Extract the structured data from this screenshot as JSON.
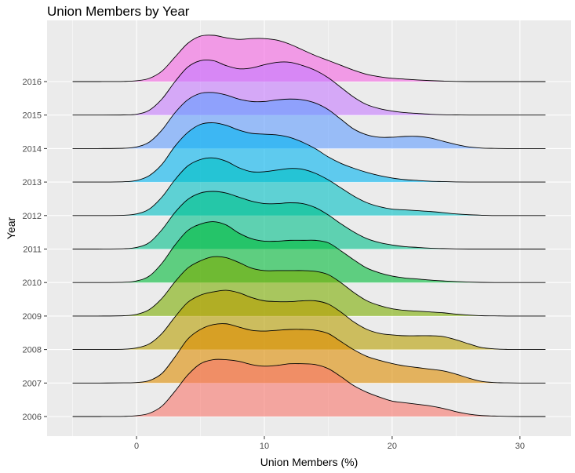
{
  "chart_data": {
    "type": "ridgeline",
    "title": "Union Members by Year",
    "xlabel": "Union Members (%)",
    "ylabel": "Year",
    "xlim": [
      -7,
      34
    ],
    "x_ticks": [
      0,
      10,
      20,
      30
    ],
    "grid": true,
    "x": [
      -5,
      -3,
      -1,
      0,
      1,
      2,
      3,
      4,
      5,
      6,
      7,
      8,
      9,
      10,
      11,
      12,
      13,
      14,
      15,
      16,
      17,
      18,
      19,
      20,
      21,
      22,
      23,
      24,
      25,
      26,
      27,
      28,
      29,
      30,
      31,
      32
    ],
    "series": [
      {
        "name": "2006",
        "color": "#F8766D",
        "values": [
          0,
          0,
          0.01,
          0.05,
          0.2,
          0.65,
          1.55,
          2.55,
          3.25,
          3.5,
          3.5,
          3.4,
          3.2,
          3.1,
          3.15,
          3.25,
          3.25,
          3.2,
          2.95,
          2.45,
          1.9,
          1.5,
          1.2,
          0.95,
          0.85,
          0.75,
          0.65,
          0.5,
          0.3,
          0.15,
          0.06,
          0.03,
          0.01,
          0,
          0,
          0
        ]
      },
      {
        "name": "2007",
        "color": "#DE8C00",
        "values": [
          0,
          0,
          0.01,
          0.03,
          0.15,
          0.6,
          1.6,
          2.7,
          3.3,
          3.6,
          3.65,
          3.45,
          3.25,
          3.2,
          3.25,
          3.3,
          3.3,
          3.25,
          3.05,
          2.55,
          2.05,
          1.65,
          1.4,
          1.2,
          1.05,
          0.95,
          0.85,
          0.75,
          0.55,
          0.3,
          0.1,
          0.03,
          0.01,
          0,
          0,
          0
        ]
      },
      {
        "name": "2008",
        "color": "#B79F00",
        "values": [
          0,
          0,
          0.02,
          0.1,
          0.35,
          1.0,
          2.0,
          2.9,
          3.35,
          3.55,
          3.65,
          3.5,
          3.2,
          3.0,
          2.95,
          2.95,
          3.0,
          3.0,
          2.8,
          2.3,
          1.7,
          1.25,
          1.0,
          0.9,
          0.85,
          0.85,
          0.85,
          0.8,
          0.6,
          0.35,
          0.12,
          0.04,
          0.01,
          0,
          0,
          0
        ]
      },
      {
        "name": "2009",
        "color": "#7CAE00",
        "values": [
          0,
          0,
          0.02,
          0.1,
          0.4,
          1.1,
          2.1,
          2.95,
          3.4,
          3.65,
          3.6,
          3.3,
          2.95,
          2.8,
          2.8,
          2.8,
          2.8,
          2.75,
          2.55,
          2.05,
          1.45,
          0.95,
          0.65,
          0.45,
          0.35,
          0.3,
          0.25,
          0.2,
          0.12,
          0.06,
          0.02,
          0.01,
          0,
          0,
          0,
          0
        ]
      },
      {
        "name": "2010",
        "color": "#00BA38",
        "values": [
          0,
          0,
          0.02,
          0.1,
          0.4,
          1.2,
          2.3,
          3.2,
          3.6,
          3.75,
          3.55,
          3.05,
          2.7,
          2.55,
          2.55,
          2.6,
          2.6,
          2.6,
          2.45,
          1.95,
          1.4,
          0.9,
          0.6,
          0.4,
          0.28,
          0.22,
          0.15,
          0.1,
          0.06,
          0.03,
          0.01,
          0,
          0,
          0,
          0,
          0
        ]
      },
      {
        "name": "2011",
        "color": "#00C08B",
        "values": [
          0,
          0,
          0.02,
          0.1,
          0.4,
          1.2,
          2.25,
          3.05,
          3.45,
          3.55,
          3.45,
          3.2,
          2.95,
          2.8,
          2.8,
          2.85,
          2.8,
          2.55,
          2.1,
          1.55,
          1.05,
          0.65,
          0.4,
          0.25,
          0.15,
          0.1,
          0.05,
          0.03,
          0.01,
          0,
          0,
          0,
          0,
          0,
          0,
          0
        ]
      },
      {
        "name": "2012",
        "color": "#00BFC4",
        "values": [
          0,
          0,
          0.02,
          0.1,
          0.4,
          1.15,
          2.2,
          3.05,
          3.45,
          3.55,
          3.35,
          2.95,
          2.7,
          2.7,
          2.8,
          2.9,
          2.85,
          2.6,
          2.2,
          1.7,
          1.2,
          0.8,
          0.55,
          0.4,
          0.35,
          0.3,
          0.25,
          0.18,
          0.1,
          0.05,
          0.02,
          0,
          0,
          0,
          0,
          0
        ]
      },
      {
        "name": "2013",
        "color": "#00B4F0",
        "values": [
          0,
          0,
          0.02,
          0.1,
          0.4,
          1.1,
          2.2,
          3.05,
          3.55,
          3.65,
          3.5,
          3.2,
          3.0,
          2.95,
          2.9,
          2.75,
          2.45,
          2.05,
          1.55,
          1.15,
          0.85,
          0.6,
          0.4,
          0.25,
          0.15,
          0.1,
          0.05,
          0.03,
          0.01,
          0,
          0,
          0,
          0,
          0,
          0,
          0
        ]
      },
      {
        "name": "2014",
        "color": "#619CFF",
        "values": [
          0,
          0,
          0.02,
          0.1,
          0.4,
          1.15,
          2.2,
          3.0,
          3.4,
          3.45,
          3.3,
          3.05,
          2.9,
          2.9,
          3.0,
          3.05,
          3.0,
          2.8,
          2.4,
          1.8,
          1.2,
          0.85,
          0.7,
          0.7,
          0.75,
          0.75,
          0.65,
          0.45,
          0.25,
          0.1,
          0.03,
          0.01,
          0,
          0,
          0,
          0
        ]
      },
      {
        "name": "2015",
        "color": "#C77CFF",
        "values": [
          0,
          0,
          0.01,
          0.05,
          0.3,
          1.0,
          2.05,
          2.95,
          3.35,
          3.35,
          3.05,
          2.85,
          2.9,
          3.1,
          3.25,
          3.25,
          3.05,
          2.75,
          2.3,
          1.7,
          1.1,
          0.65,
          0.4,
          0.25,
          0.15,
          0.1,
          0.05,
          0.02,
          0.01,
          0,
          0,
          0,
          0,
          0,
          0,
          0
        ]
      },
      {
        "name": "2016",
        "color": "#F564E3",
        "values": [
          0,
          0,
          0.01,
          0.05,
          0.2,
          0.65,
          1.5,
          2.35,
          2.8,
          2.85,
          2.7,
          2.6,
          2.65,
          2.65,
          2.55,
          2.3,
          1.95,
          1.6,
          1.3,
          1.0,
          0.7,
          0.45,
          0.3,
          0.2,
          0.15,
          0.1,
          0.06,
          0.03,
          0.01,
          0,
          0,
          0,
          0,
          0,
          0,
          0
        ]
      }
    ]
  }
}
